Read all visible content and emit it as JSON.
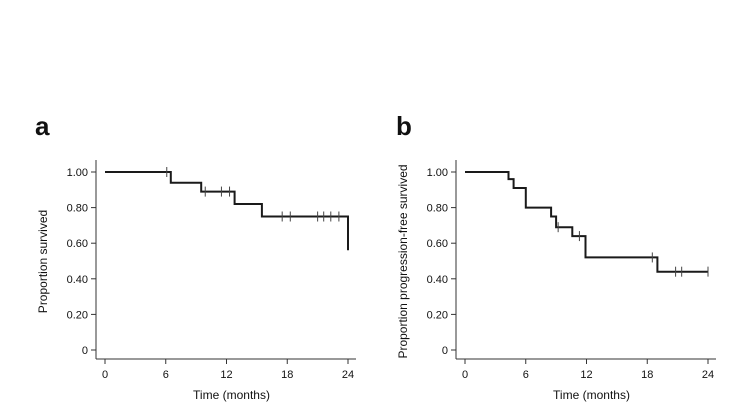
{
  "chart_data": [
    {
      "type": "line",
      "step": true,
      "panel": "a",
      "xlabel": "Time (months)",
      "ylabel": "Proportion survived",
      "xlim": [
        0,
        24
      ],
      "ylim": [
        0,
        1
      ],
      "xticks": [
        "0",
        "6",
        "12",
        "18",
        "24"
      ],
      "yticks": [
        "0",
        "0.20",
        "0.40",
        "0.60",
        "0.80",
        "1.00"
      ],
      "grid": false,
      "series": [
        {
          "x": [
            0,
            6.5,
            6.5,
            9.5,
            9.5,
            12.8,
            12.8,
            15.5,
            15.5,
            24.0,
            24.0
          ],
          "y": [
            1.0,
            1.0,
            0.94,
            0.94,
            0.89,
            0.89,
            0.82,
            0.82,
            0.75,
            0.75,
            0.56
          ]
        }
      ],
      "censored": [
        {
          "x": 6.1,
          "y": 1.0
        },
        {
          "x": 9.9,
          "y": 0.89
        },
        {
          "x": 11.5,
          "y": 0.89
        },
        {
          "x": 12.3,
          "y": 0.89
        },
        {
          "x": 17.5,
          "y": 0.75
        },
        {
          "x": 18.3,
          "y": 0.75
        },
        {
          "x": 21.0,
          "y": 0.75
        },
        {
          "x": 21.6,
          "y": 0.75
        },
        {
          "x": 22.3,
          "y": 0.75
        },
        {
          "x": 23.1,
          "y": 0.75
        }
      ]
    },
    {
      "type": "line",
      "step": true,
      "panel": "b",
      "xlabel": "Time (months)",
      "ylabel": "Proportion progression-free survived",
      "xlim": [
        0,
        24
      ],
      "ylim": [
        0,
        1
      ],
      "xticks": [
        "0",
        "6",
        "12",
        "18",
        "24"
      ],
      "yticks": [
        "0",
        "0.20",
        "0.40",
        "0.60",
        "0.80",
        "1.00"
      ],
      "grid": false,
      "series": [
        {
          "x": [
            0,
            4.3,
            4.3,
            4.8,
            4.8,
            6.0,
            6.0,
            8.5,
            8.5,
            9.0,
            9.0,
            10.6,
            10.6,
            11.4,
            11.4,
            11.9,
            11.9,
            19.0,
            19.0,
            24.0
          ],
          "y": [
            1.0,
            1.0,
            0.96,
            0.96,
            0.91,
            0.91,
            0.8,
            0.8,
            0.75,
            0.75,
            0.69,
            0.69,
            0.64,
            0.64,
            0.64,
            0.64,
            0.52,
            0.52,
            0.44,
            0.44
          ]
        }
      ],
      "censored": [
        {
          "x": 9.2,
          "y": 0.69
        },
        {
          "x": 11.3,
          "y": 0.64
        },
        {
          "x": 18.5,
          "y": 0.52
        },
        {
          "x": 20.8,
          "y": 0.44
        },
        {
          "x": 21.4,
          "y": 0.44
        },
        {
          "x": 24.0,
          "y": 0.44
        }
      ]
    }
  ]
}
